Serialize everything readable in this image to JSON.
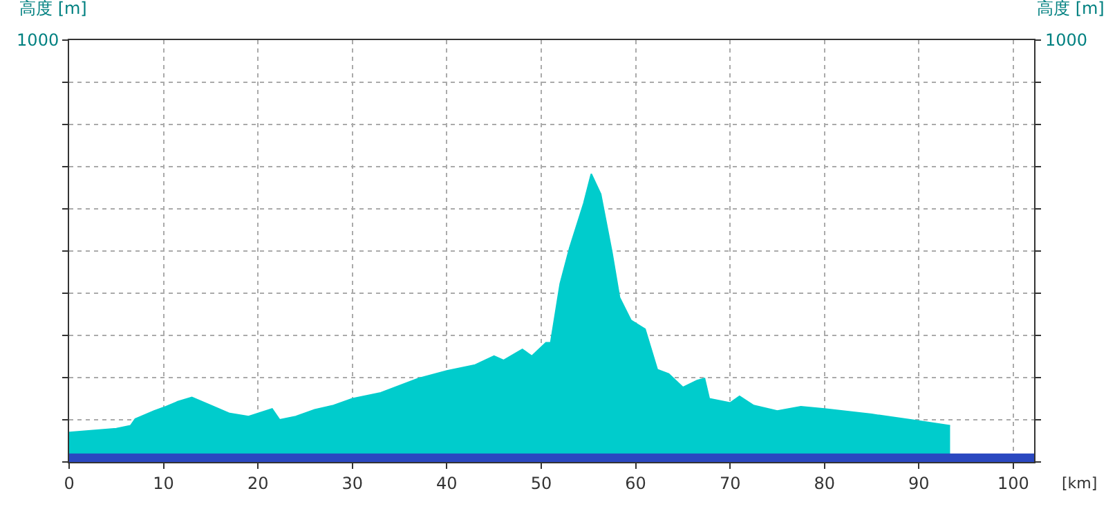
{
  "chart_data": {
    "type": "area",
    "xlabel": "[km]",
    "ylabel": "高度 [m]",
    "y2label": "高度 [m]",
    "x": [
      0,
      5,
      6.5,
      7,
      9,
      10,
      11.5,
      13,
      15,
      17,
      19,
      21.5,
      22.3,
      24,
      26,
      28,
      30,
      33,
      37,
      40,
      43,
      45,
      46,
      48,
      49,
      50.5,
      51,
      52,
      53,
      54.5,
      55.3,
      56.3,
      57.5,
      58.3,
      59.5,
      61,
      62.3,
      63.5,
      65,
      66.5,
      67.3,
      67.8,
      70,
      71,
      72.5,
      75,
      77.5,
      80,
      85,
      90,
      93.3
    ],
    "series": [
      {
        "color": "#00cccc",
        "values": [
          70,
          79,
          86,
          102,
          121,
          129,
          143,
          153,
          134,
          115,
          108,
          126,
          100,
          108,
          124,
          134,
          150,
          164,
          198,
          216,
          230,
          251,
          241,
          267,
          251,
          283,
          283,
          422,
          507,
          613,
          683,
          635,
          496,
          390,
          336,
          315,
          219,
          209,
          177,
          193,
          198,
          150,
          140,
          156,
          134,
          121,
          131,
          126,
          113,
          97,
          86
        ]
      }
    ],
    "bands": [
      {
        "axis": "y",
        "from": 0,
        "to": 20,
        "color": "#2a48c0"
      }
    ],
    "xlim": [
      0,
      102.2
    ],
    "xticks": [
      0,
      10,
      20,
      30,
      40,
      50,
      60,
      70,
      80,
      90,
      100
    ],
    "ylim": [
      0,
      1000
    ],
    "yticks": [
      {
        "value": 0,
        "label": null
      },
      {
        "value": 100,
        "label": null
      },
      {
        "value": 200,
        "label": null
      },
      {
        "value": 300,
        "label": null
      },
      {
        "value": 400,
        "label": null
      },
      {
        "value": 500,
        "label": null
      },
      {
        "value": 600,
        "label": null
      },
      {
        "value": 700,
        "label": null
      },
      {
        "value": 800,
        "label": null
      },
      {
        "value": 900,
        "label": null
      },
      1000
    ],
    "annotations": [
      "1000"
    ],
    "grid": true,
    "legend": false
  }
}
